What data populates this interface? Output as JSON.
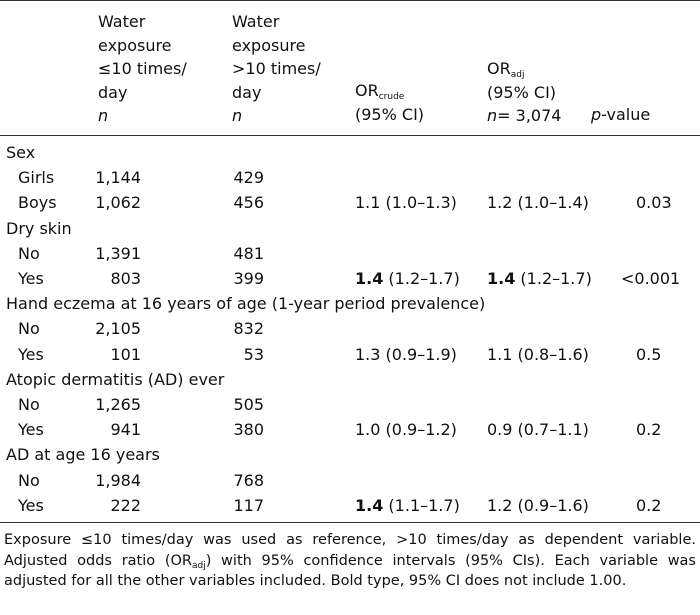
{
  "header": {
    "col1": [
      "Water",
      "exposure",
      "≤10 times/",
      "day",
      "n"
    ],
    "col2": [
      "Water",
      "exposure",
      ">10 times/",
      "day",
      "n"
    ],
    "col3": {
      "or": "OR",
      "sub": "crude",
      "ci": "(95% CI)"
    },
    "col4": {
      "or": "OR",
      "sub": "adj",
      "ci": "(95% CI)",
      "n_label": "n",
      "n_value": "= 3,074"
    },
    "col5": {
      "p": "p",
      "rest": "-value"
    }
  },
  "rows": [
    {
      "label": "Sex",
      "kind": "section"
    },
    {
      "label": "Girls",
      "kind": "sub",
      "n1": "1,144",
      "n2": "429"
    },
    {
      "label": "Boys",
      "kind": "sub",
      "n1": "1,062",
      "n2": "456",
      "or_crude": "1.1",
      "or_crude_ci": " (1.0–1.3)",
      "or_adj": "1.2",
      "or_adj_ci": " (1.0–1.4)",
      "p": "0.03"
    },
    {
      "label": "Dry skin",
      "kind": "section"
    },
    {
      "label": "No",
      "kind": "sub",
      "n1": "1,391",
      "n2": "481"
    },
    {
      "label": "Yes",
      "kind": "sub",
      "n1": "803",
      "n2": "399",
      "or_crude": "1.4",
      "or_crude_bold": true,
      "or_crude_ci": " (1.2–1.7)",
      "or_adj": "1.4",
      "or_adj_bold": true,
      "or_adj_ci": " (1.2–1.7)",
      "p": "<0.001"
    },
    {
      "label": "Hand eczema at 16 years of age (1-year period prevalence)",
      "kind": "section"
    },
    {
      "label": "No",
      "kind": "sub",
      "n1": "2,105",
      "n2": "832"
    },
    {
      "label": "Yes",
      "kind": "sub",
      "n1": "101",
      "n2": "53",
      "or_crude": "1.3",
      "or_crude_ci": " (0.9–1.9)",
      "or_adj": "1.1",
      "or_adj_ci": " (0.8–1.6)",
      "p": "0.5"
    },
    {
      "label": "Atopic dermatitis (AD) ever",
      "kind": "section"
    },
    {
      "label": "No",
      "kind": "sub",
      "n1": "1,265",
      "n2": "505"
    },
    {
      "label": "Yes",
      "kind": "sub",
      "n1": "941",
      "n2": "380",
      "or_crude": "1.0",
      "or_crude_ci": " (0.9–1.2)",
      "or_adj": "0.9",
      "or_adj_ci": " (0.7–1.1)",
      "p": "0.2"
    },
    {
      "label": "AD at age 16 years",
      "kind": "section"
    },
    {
      "label": "No",
      "kind": "sub",
      "n1": "1,984",
      "n2": "768"
    },
    {
      "label": "Yes",
      "kind": "sub",
      "n1": "222",
      "n2": "117",
      "or_crude": "1.4",
      "or_crude_bold": true,
      "or_crude_ci": " (1.1–1.7)",
      "or_adj": "1.2",
      "or_adj_ci": " (0.9–1.6)",
      "p": "0.2"
    }
  ],
  "footnote": {
    "p1": "Exposure ≤10 times/day was used as reference, >10 times/day as dependent variable. Adjusted odds ratio (OR",
    "p1_sub": "adj",
    "p2": ") with 95% confidence intervals (95% CIs). Each variable was adjusted for all the other variables included. Bold type, 95% CI does not include 1.00."
  }
}
